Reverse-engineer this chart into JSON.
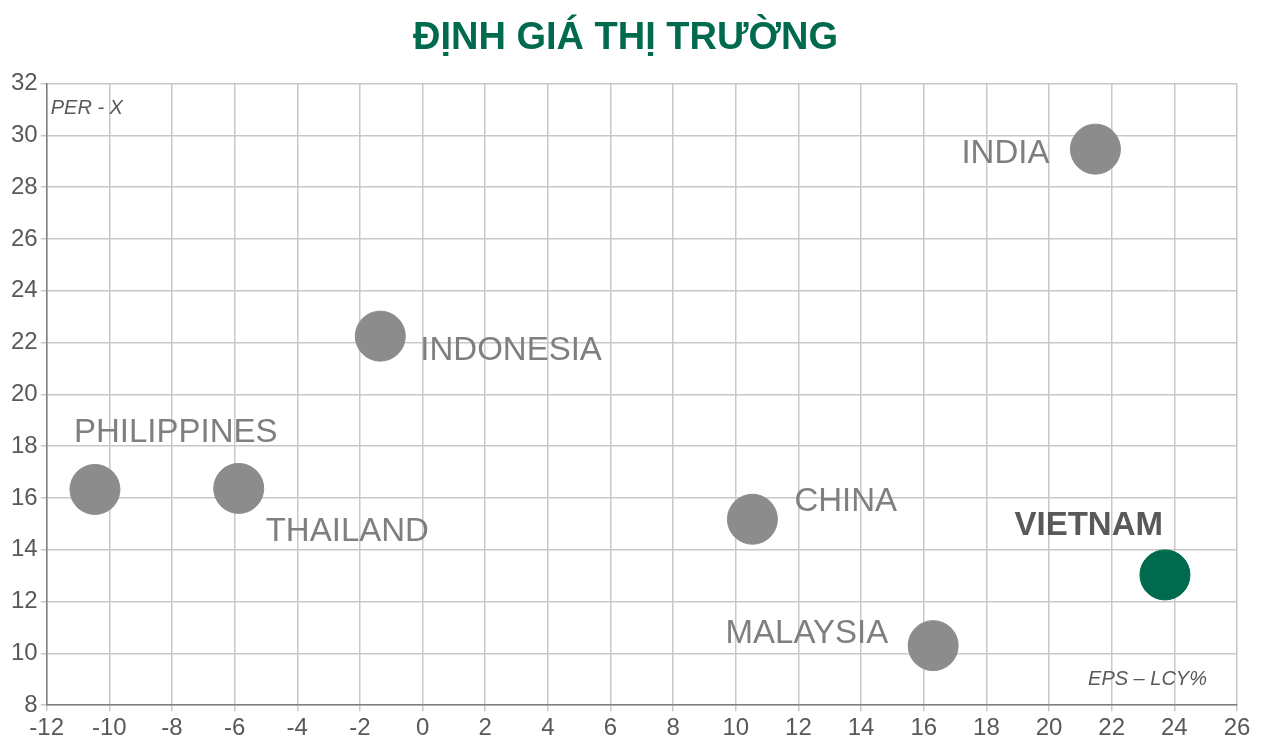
{
  "chart_data": {
    "type": "scatter",
    "title": "ĐỊNH GIÁ THỊ TRƯỜNG",
    "xlabel": "EPS – LCY%",
    "ylabel": "PER - X",
    "series": [
      {
        "name": "PHILIPPINES",
        "color": "#8c8c8c",
        "x": [
          -10.46
        ],
        "values": [
          16.33
        ]
      },
      {
        "name": "THAILAND",
        "color": "#8c8c8c",
        "x": [
          -5.87
        ],
        "values": [
          16.37
        ]
      },
      {
        "name": "INDONESIA",
        "color": "#8c8c8c",
        "x": [
          -1.35
        ],
        "values": [
          22.25
        ]
      },
      {
        "name": "CHINA",
        "color": "#8c8c8c",
        "x": [
          10.53
        ],
        "values": [
          15.18
        ]
      },
      {
        "name": "MALAYSIA",
        "color": "#8c8c8c",
        "x": [
          16.3
        ],
        "values": [
          10.3
        ]
      },
      {
        "name": "INDIA",
        "color": "#8c8c8c",
        "x": [
          21.48
        ],
        "values": [
          29.47
        ]
      },
      {
        "name": "VIETNAM",
        "color": "#006a4e",
        "x": [
          23.7
        ],
        "values": [
          13.03
        ]
      }
    ],
    "xlim": [
      -12,
      26
    ],
    "xticks": [
      -12,
      -10,
      -8,
      -6,
      -4,
      -2,
      0,
      2,
      4,
      6,
      8,
      10,
      12,
      14,
      16,
      18,
      20,
      22,
      24,
      26
    ],
    "ylim": [
      8,
      32
    ],
    "yticks": [
      8,
      10,
      12,
      14,
      16,
      18,
      20,
      22,
      24,
      26,
      28,
      30,
      32
    ],
    "grid": true,
    "marker": "circle",
    "legend": false
  }
}
